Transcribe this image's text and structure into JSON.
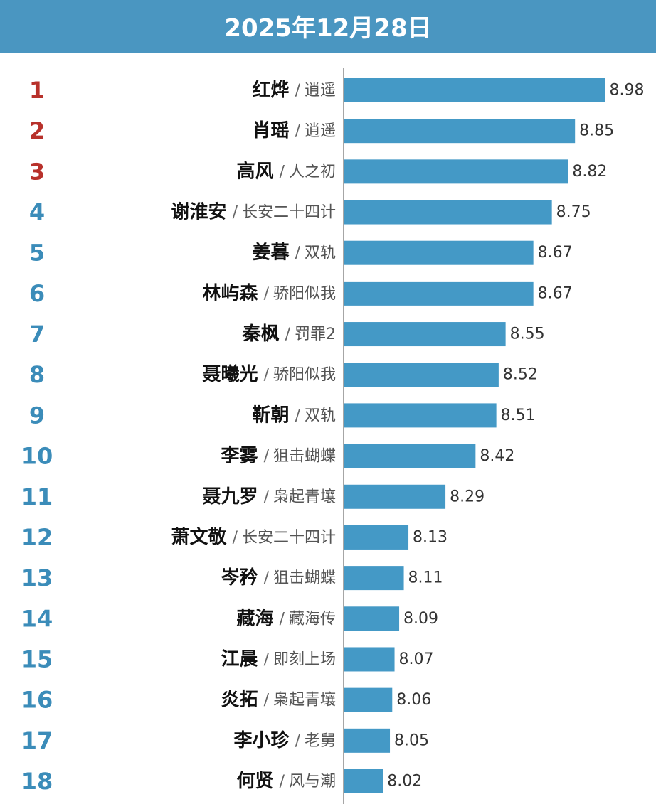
{
  "chart_data": {
    "type": "bar",
    "orientation": "horizontal",
    "title": "2025年12月28日",
    "header_color": "#4a96c1",
    "ranks": [
      "1",
      "2",
      "3",
      "4",
      "5",
      "6",
      "7",
      "8",
      "9",
      "10",
      "11",
      "12",
      "13",
      "14",
      "15",
      "16",
      "17",
      "18"
    ],
    "top_count": 3,
    "top_rank_color": "#b8312b",
    "rank_color": "#3b8cb9",
    "separator": "/",
    "categories": [
      "红烨",
      "肖瑶",
      "高风",
      "谢淮安",
      "姜暮",
      "林屿森",
      "秦枫",
      "聂曦光",
      "靳朝",
      "李雾",
      "聂九罗",
      "萧文敬",
      "岑矜",
      "藏海",
      "江晨",
      "炎拓",
      "李小珍",
      "何贤"
    ],
    "shows": [
      "逍遥",
      "逍遥",
      "人之初",
      "长安二十四计",
      "双轨",
      "骄阳似我",
      "罚罪2",
      "骄阳似我",
      "双轨",
      "狙击蝴蝶",
      "枭起青壤",
      "长安二十四计",
      "狙击蝴蝶",
      "藏海传",
      "即刻上场",
      "枭起青壤",
      "老舅",
      "风与潮"
    ],
    "values": [
      8.98,
      8.85,
      8.82,
      8.75,
      8.67,
      8.67,
      8.55,
      8.52,
      8.51,
      8.42,
      8.29,
      8.13,
      8.11,
      8.09,
      8.07,
      8.06,
      8.05,
      8.02
    ],
    "color": "#4499c6",
    "xlim": [
      7.85,
      9.2
    ]
  }
}
